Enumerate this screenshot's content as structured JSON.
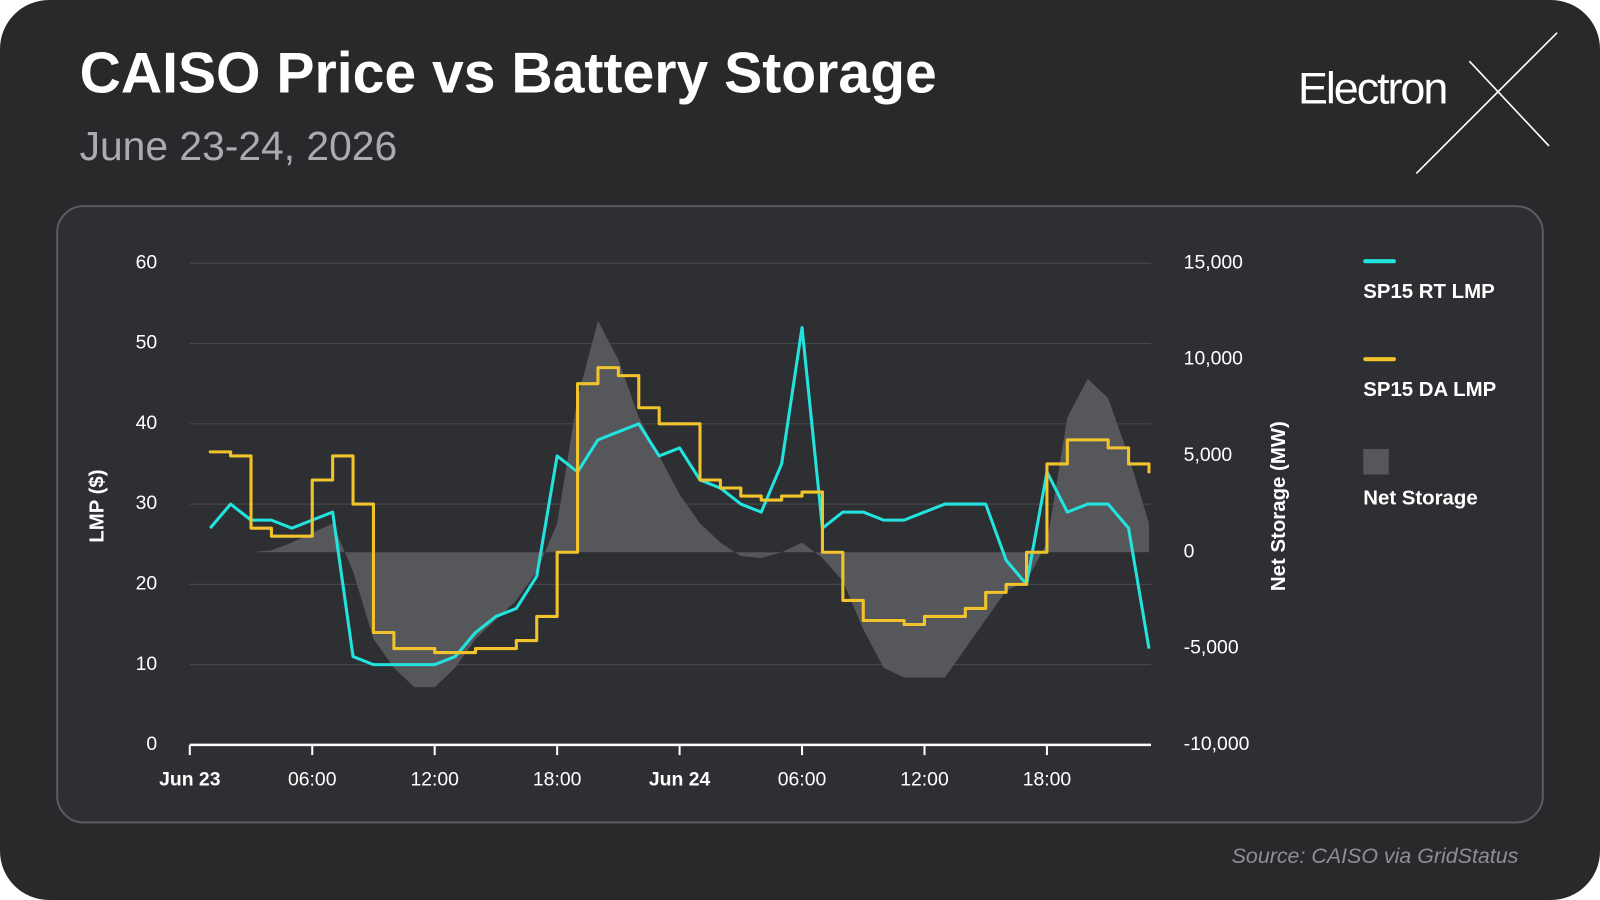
{
  "brand": "Electron",
  "chart_data": {
    "type": "line",
    "title": "CAISO Price vs Battery Storage",
    "subtitle": "June 23-24, 2026",
    "y_label": "LMP ($)",
    "y2_label": "Net Storage (MW)",
    "source": "Source: CAISO via GridStatus",
    "x": [
      1,
      2,
      3,
      4,
      5,
      6,
      7,
      8,
      9,
      10,
      11,
      12,
      13,
      14,
      15,
      16,
      17,
      18,
      19,
      20,
      21,
      22,
      23,
      24,
      25,
      26,
      27,
      28,
      29,
      30,
      31,
      32,
      33,
      34,
      35,
      36,
      37,
      38,
      39,
      40,
      41,
      42,
      43,
      44,
      45,
      46,
      47
    ],
    "xlim": [
      0,
      47.1
    ],
    "xticks": [
      {
        "value": 0,
        "label": "Jun 23"
      },
      {
        "value": 6,
        "label": "06:00"
      },
      {
        "value": 12,
        "label": "12:00"
      },
      {
        "value": 18,
        "label": "18:00"
      },
      {
        "value": 24,
        "label": "Jun 24"
      },
      {
        "value": 30,
        "label": "06:00"
      },
      {
        "value": 36,
        "label": "12:00"
      },
      {
        "value": 42,
        "label": "18:00"
      }
    ],
    "ylim": [
      0,
      60
    ],
    "yticks": [
      0,
      10,
      20,
      30,
      40,
      50,
      60
    ],
    "y2lim": [
      -10000,
      15000
    ],
    "y2ticks": [
      {
        "value": -10000,
        "label": "-10,000"
      },
      {
        "value": -5000,
        "label": "-5,000"
      },
      0,
      {
        "value": 5000,
        "label": "5,000"
      },
      {
        "value": 10000,
        "label": "10,000"
      },
      {
        "value": 15000,
        "label": "15,000"
      }
    ],
    "grid": true,
    "legend": "right",
    "series": [
      {
        "name": "Net Storage",
        "type": "area",
        "axis": "y2",
        "color": "#56575b",
        "values": [
          0,
          0,
          0,
          100,
          500,
          1000,
          1500,
          -1000,
          -4500,
          -6000,
          -7000,
          -7000,
          -6000,
          -4500,
          -3500,
          -2500,
          -1000,
          1500,
          8000,
          12000,
          10000,
          7000,
          5000,
          3000,
          1500,
          500,
          -200,
          -300,
          0,
          500,
          -300,
          -1500,
          -4000,
          -6000,
          -6500,
          -6500,
          -6500,
          -5000,
          -3500,
          -2000,
          -1500,
          500,
          7000,
          9000,
          8000,
          5000,
          1500
        ]
      },
      {
        "name": "SP15 RT LMP",
        "type": "line",
        "color": "#22e3dd",
        "values": [
          27,
          30,
          28,
          28,
          27,
          28,
          29,
          11,
          10,
          10,
          10,
          10,
          11,
          14,
          16,
          17,
          21,
          36,
          34,
          38,
          39,
          40,
          36,
          37,
          33,
          32,
          30,
          29,
          35,
          52,
          27,
          29,
          29,
          28,
          28,
          29,
          30,
          30,
          30,
          23,
          20,
          34,
          29,
          30,
          30,
          27,
          12
        ]
      },
      {
        "name": "SP15 DA LMP",
        "type": "step",
        "color": "#f2c42c",
        "values": [
          36.5,
          36,
          27,
          26,
          26,
          33,
          36,
          30,
          14,
          12,
          12,
          11.5,
          11.5,
          12,
          12,
          13,
          16,
          24,
          45,
          47,
          46,
          42,
          40,
          40,
          33,
          32,
          31,
          30.5,
          31,
          31.5,
          24,
          18,
          15.5,
          15.5,
          15,
          16,
          16,
          17,
          19,
          20,
          24,
          35,
          38,
          38,
          37,
          35,
          34
        ]
      }
    ]
  }
}
